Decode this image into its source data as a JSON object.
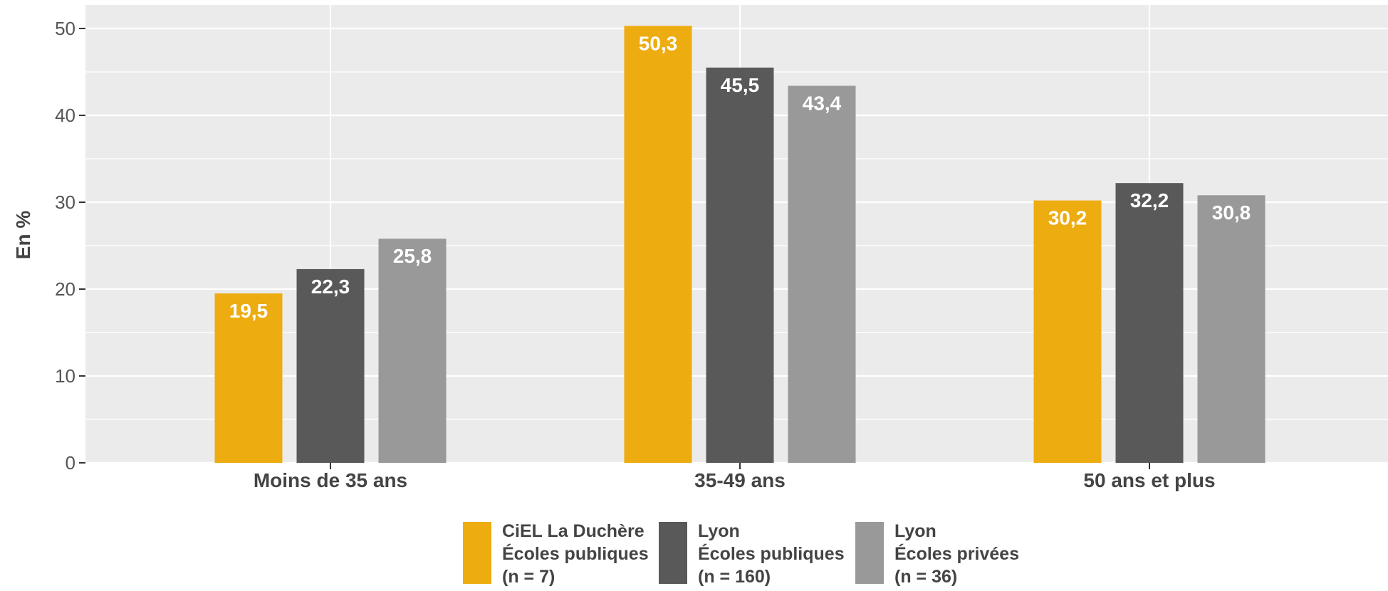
{
  "chart_data": {
    "type": "bar",
    "title": "",
    "xlabel": "",
    "ylabel": "En %",
    "ylim": [
      0,
      53
    ],
    "yticks": [
      0,
      10,
      20,
      30,
      40,
      50
    ],
    "ytick_labels": [
      "0",
      "10",
      "20",
      "30",
      "40",
      "50"
    ],
    "grid": true,
    "legend_position": "bottom",
    "categories": [
      "Moins de 35 ans",
      "35-49 ans",
      "50 ans et plus"
    ],
    "series": [
      {
        "name": "CiEL La Duchère Écoles publiques (n = 7)",
        "legend_lines": [
          "CiEL La Duchère",
          "Écoles publiques",
          "(n = 7)"
        ],
        "color": "#EDAC10",
        "values": [
          19.5,
          50.3,
          30.2
        ],
        "labels": [
          "19,5",
          "50,3",
          "30,2"
        ]
      },
      {
        "name": "Lyon Écoles publiques (n = 160)",
        "legend_lines": [
          "Lyon",
          "Écoles publiques",
          "(n = 160)"
        ],
        "color": "#595959",
        "values": [
          22.3,
          45.5,
          32.2
        ],
        "labels": [
          "22,3",
          "45,5",
          "32,2"
        ]
      },
      {
        "name": "Lyon Écoles privées (n = 36)",
        "legend_lines": [
          "Lyon",
          "Écoles privées",
          "(n = 36)"
        ],
        "color": "#999999",
        "values": [
          25.8,
          43.4,
          30.8
        ],
        "labels": [
          "25,8",
          "43,4",
          "30,8"
        ]
      }
    ],
    "panel_background": "#EBEBEB",
    "grid_color": "#FFFFFF"
  }
}
